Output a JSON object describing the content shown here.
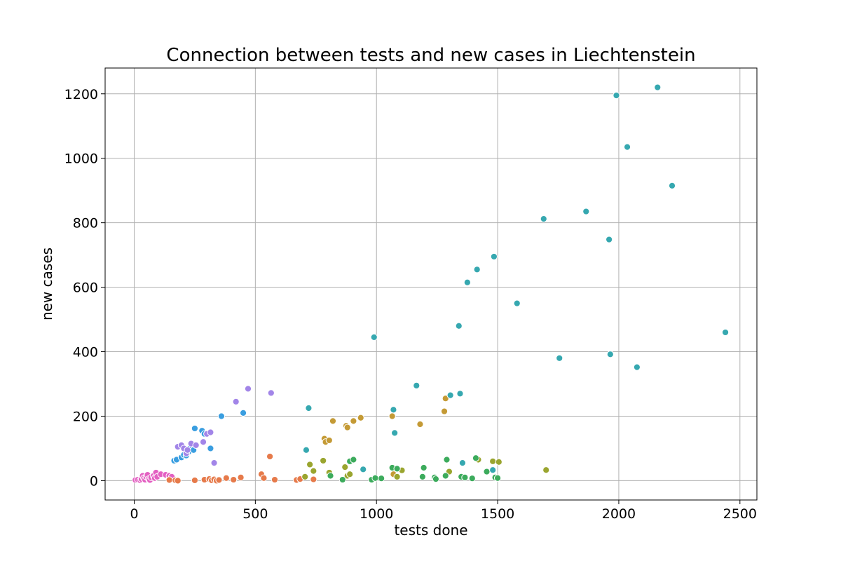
{
  "chart_data": {
    "type": "scatter",
    "title": "Connection between tests and new cases in Liechtenstein",
    "xlabel": "tests done",
    "ylabel": "new cases",
    "xlim": [
      -120,
      2570
    ],
    "ylim": [
      -60,
      1280
    ],
    "xticks": [
      0,
      500,
      1000,
      1500,
      2000,
      2500
    ],
    "yticks": [
      0,
      200,
      400,
      600,
      800,
      1000,
      1200
    ],
    "grid": true,
    "legend": "none",
    "series": [
      {
        "color": "#e361c2",
        "points": [
          [
            5,
            2
          ],
          [
            15,
            3
          ],
          [
            25,
            1
          ],
          [
            30,
            5
          ],
          [
            35,
            15
          ],
          [
            40,
            8
          ],
          [
            45,
            3
          ],
          [
            50,
            12
          ],
          [
            55,
            18
          ],
          [
            60,
            5
          ],
          [
            65,
            2
          ],
          [
            70,
            10
          ],
          [
            80,
            15
          ],
          [
            85,
            8
          ],
          [
            90,
            25
          ],
          [
            95,
            12
          ],
          [
            110,
            20
          ],
          [
            130,
            18
          ],
          [
            145,
            15
          ],
          [
            155,
            12
          ]
        ]
      },
      {
        "color": "#e67a4a",
        "points": [
          [
            145,
            2
          ],
          [
            170,
            1
          ],
          [
            180,
            0
          ],
          [
            250,
            1
          ],
          [
            290,
            3
          ],
          [
            310,
            5
          ],
          [
            320,
            1
          ],
          [
            330,
            4
          ],
          [
            340,
            0
          ],
          [
            350,
            2
          ],
          [
            380,
            8
          ],
          [
            410,
            3
          ],
          [
            440,
            10
          ],
          [
            525,
            20
          ],
          [
            535,
            8
          ],
          [
            560,
            75
          ],
          [
            580,
            3
          ],
          [
            670,
            2
          ],
          [
            685,
            5
          ],
          [
            740,
            4
          ]
        ]
      },
      {
        "color": "#c49a35",
        "points": [
          [
            785,
            130
          ],
          [
            790,
            120
          ],
          [
            805,
            125
          ],
          [
            820,
            185
          ],
          [
            875,
            170
          ],
          [
            880,
            165
          ],
          [
            905,
            185
          ],
          [
            935,
            195
          ],
          [
            1065,
            200
          ],
          [
            1070,
            20
          ],
          [
            1180,
            175
          ],
          [
            1280,
            215
          ],
          [
            1285,
            255
          ]
        ]
      },
      {
        "color": "#9aa52f",
        "points": [
          [
            705,
            12
          ],
          [
            725,
            50
          ],
          [
            740,
            30
          ],
          [
            780,
            62
          ],
          [
            805,
            25
          ],
          [
            870,
            42
          ],
          [
            880,
            15
          ],
          [
            890,
            20
          ],
          [
            1085,
            12
          ],
          [
            1105,
            32
          ],
          [
            1300,
            28
          ],
          [
            1420,
            65
          ],
          [
            1480,
            60
          ],
          [
            1505,
            58
          ],
          [
            1700,
            33
          ]
        ]
      },
      {
        "color": "#3cab5c",
        "points": [
          [
            810,
            15
          ],
          [
            860,
            3
          ],
          [
            890,
            60
          ],
          [
            905,
            65
          ],
          [
            980,
            3
          ],
          [
            995,
            8
          ],
          [
            1020,
            7
          ],
          [
            1065,
            40
          ],
          [
            1085,
            37
          ],
          [
            1190,
            12
          ],
          [
            1195,
            40
          ],
          [
            1240,
            10
          ],
          [
            1245,
            5
          ],
          [
            1285,
            15
          ],
          [
            1290,
            65
          ],
          [
            1350,
            12
          ],
          [
            1365,
            10
          ],
          [
            1395,
            7
          ],
          [
            1410,
            70
          ],
          [
            1455,
            28
          ],
          [
            1490,
            10
          ],
          [
            1500,
            8
          ]
        ]
      },
      {
        "color": "#36a8b0",
        "points": [
          [
            710,
            95
          ],
          [
            720,
            225
          ],
          [
            945,
            35
          ],
          [
            990,
            445
          ],
          [
            1070,
            220
          ],
          [
            1075,
            148
          ],
          [
            1165,
            295
          ],
          [
            1305,
            265
          ],
          [
            1340,
            480
          ],
          [
            1345,
            270
          ],
          [
            1355,
            55
          ],
          [
            1375,
            615
          ],
          [
            1415,
            655
          ],
          [
            1480,
            33
          ],
          [
            1485,
            695
          ],
          [
            1580,
            550
          ],
          [
            1690,
            812
          ],
          [
            1755,
            380
          ],
          [
            1865,
            835
          ],
          [
            1960,
            748
          ],
          [
            1965,
            392
          ],
          [
            1990,
            1195
          ],
          [
            2035,
            1035
          ],
          [
            2075,
            352
          ],
          [
            2160,
            1220
          ],
          [
            2220,
            915
          ],
          [
            2440,
            460
          ]
        ]
      },
      {
        "color": "#3a9ee0",
        "points": [
          [
            165,
            62
          ],
          [
            175,
            65
          ],
          [
            195,
            72
          ],
          [
            205,
            80
          ],
          [
            215,
            78
          ],
          [
            225,
            90
          ],
          [
            230,
            100
          ],
          [
            245,
            95
          ],
          [
            250,
            162
          ],
          [
            280,
            155
          ],
          [
            290,
            145
          ],
          [
            315,
            100
          ],
          [
            360,
            200
          ],
          [
            450,
            210
          ]
        ]
      },
      {
        "color": "#a285e8",
        "points": [
          [
            180,
            105
          ],
          [
            195,
            110
          ],
          [
            205,
            100
          ],
          [
            215,
            85
          ],
          [
            220,
            95
          ],
          [
            235,
            115
          ],
          [
            255,
            110
          ],
          [
            285,
            120
          ],
          [
            300,
            145
          ],
          [
            315,
            150
          ],
          [
            330,
            55
          ],
          [
            420,
            245
          ],
          [
            470,
            285
          ],
          [
            565,
            272
          ]
        ]
      }
    ]
  }
}
